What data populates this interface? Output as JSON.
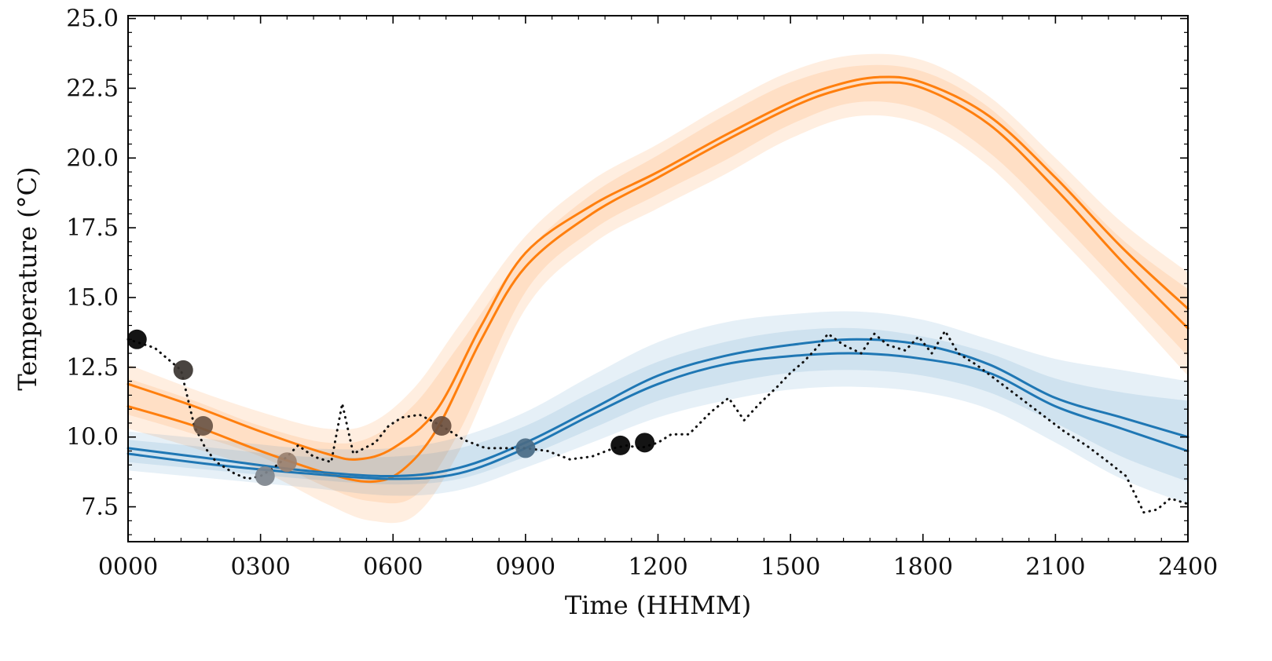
{
  "chart_data": {
    "type": "line",
    "title": "",
    "xlabel": "Time (HHMM)",
    "ylabel": "Temperature (°C)",
    "xlim": [
      0,
      2400
    ],
    "ylim": [
      6.25,
      25.1
    ],
    "x_ticks": [
      0,
      300,
      600,
      900,
      1200,
      1500,
      1800,
      2100,
      2400
    ],
    "x_tick_labels": [
      "0000",
      "0300",
      "0600",
      "0900",
      "1200",
      "1500",
      "1800",
      "2100",
      "2400"
    ],
    "y_ticks": [
      7.5,
      10.0,
      12.5,
      15.0,
      17.5,
      20.0,
      22.5,
      25.0
    ],
    "y_tick_labels": [
      "7.5",
      "10.0",
      "12.5",
      "15.0",
      "17.5",
      "20.0",
      "22.5",
      "25.0"
    ],
    "grid": false,
    "colors": {
      "orange": "#ff7f0e",
      "blue": "#1f77b4",
      "observed": "#111111",
      "axis": "#000000"
    },
    "bands": [
      {
        "name": "orange-band-outer",
        "color": "#ff7f0e",
        "opacity": 0.13,
        "x": [
          0,
          150,
          300,
          450,
          550,
          650,
          750,
          900,
          1050,
          1200,
          1350,
          1500,
          1650,
          1800,
          1950,
          2100,
          2250,
          2400
        ],
        "upper": [
          12.6,
          11.7,
          10.9,
          10.3,
          10.5,
          11.8,
          14.0,
          17.2,
          19.2,
          20.5,
          21.9,
          23.1,
          23.7,
          23.5,
          22.2,
          20.0,
          17.7,
          15.9
        ],
        "lower": [
          10.3,
          9.6,
          8.8,
          7.6,
          7.0,
          7.2,
          9.5,
          14.6,
          16.9,
          18.2,
          19.4,
          20.7,
          21.5,
          21.2,
          19.7,
          17.3,
          14.8,
          12.2
        ]
      },
      {
        "name": "orange-band-inner",
        "color": "#ff7f0e",
        "opacity": 0.13,
        "x": [
          0,
          150,
          300,
          450,
          550,
          650,
          750,
          900,
          1050,
          1200,
          1350,
          1500,
          1650,
          1800,
          1950,
          2100,
          2250,
          2400
        ],
        "upper": [
          12.1,
          11.3,
          10.4,
          9.8,
          10.0,
          11.2,
          13.3,
          16.6,
          18.7,
          20.1,
          21.5,
          22.7,
          23.3,
          23.1,
          21.8,
          19.5,
          17.1,
          15.3
        ],
        "lower": [
          10.8,
          10.1,
          9.3,
          8.2,
          7.7,
          7.9,
          10.2,
          15.2,
          17.4,
          18.7,
          19.9,
          21.2,
          22.0,
          21.7,
          20.2,
          17.9,
          15.4,
          12.9
        ]
      },
      {
        "name": "blue-band-outer",
        "color": "#1f77b4",
        "opacity": 0.11,
        "x": [
          0,
          200,
          400,
          600,
          750,
          900,
          1050,
          1200,
          1350,
          1500,
          1650,
          1800,
          1950,
          2100,
          2250,
          2400
        ],
        "upper": [
          10.2,
          9.9,
          9.6,
          9.6,
          10.0,
          10.9,
          12.2,
          13.4,
          14.1,
          14.4,
          14.5,
          14.2,
          13.5,
          12.8,
          12.4,
          12.0
        ],
        "lower": [
          8.8,
          8.5,
          8.2,
          7.9,
          8.1,
          8.9,
          9.8,
          10.7,
          11.3,
          11.7,
          11.8,
          11.6,
          11.0,
          9.8,
          8.5,
          7.6
        ]
      },
      {
        "name": "blue-band-inner",
        "color": "#1f77b4",
        "opacity": 0.11,
        "x": [
          0,
          200,
          400,
          600,
          750,
          900,
          1050,
          1200,
          1350,
          1500,
          1650,
          1800,
          1950,
          2100,
          2250,
          2400
        ],
        "upper": [
          9.9,
          9.6,
          9.3,
          9.3,
          9.6,
          10.4,
          11.6,
          12.7,
          13.4,
          13.8,
          13.9,
          13.6,
          13.0,
          12.1,
          11.6,
          11.3
        ],
        "lower": [
          9.1,
          8.8,
          8.5,
          8.3,
          8.5,
          9.3,
          10.3,
          11.3,
          11.9,
          12.3,
          12.4,
          12.2,
          11.6,
          10.5,
          9.3,
          8.4
        ]
      }
    ],
    "series": [
      {
        "name": "orange-mean-upper",
        "style": "solid",
        "color": "#ff7f0e",
        "x": [
          0,
          150,
          300,
          450,
          520,
          600,
          700,
          800,
          900,
          1050,
          1200,
          1350,
          1500,
          1600,
          1700,
          1800,
          1950,
          2100,
          2250,
          2400
        ],
        "y": [
          11.9,
          11.1,
          10.2,
          9.4,
          9.2,
          9.6,
          11.0,
          14.0,
          16.6,
          18.3,
          19.5,
          20.8,
          22.0,
          22.6,
          22.9,
          22.7,
          21.5,
          19.3,
          16.8,
          14.6
        ]
      },
      {
        "name": "orange-mean-lower",
        "style": "solid",
        "color": "#ff7f0e",
        "x": [
          0,
          150,
          300,
          450,
          550,
          620,
          700,
          800,
          900,
          1050,
          1200,
          1350,
          1500,
          1600,
          1700,
          1800,
          1950,
          2100,
          2250,
          2400
        ],
        "y": [
          11.1,
          10.4,
          9.5,
          8.7,
          8.4,
          8.8,
          10.3,
          13.5,
          16.1,
          18.0,
          19.3,
          20.6,
          21.8,
          22.4,
          22.7,
          22.5,
          21.2,
          18.9,
          16.3,
          13.9
        ]
      },
      {
        "name": "blue-mean-upper",
        "style": "solid",
        "color": "#1f77b4",
        "x": [
          0,
          200,
          400,
          600,
          750,
          900,
          1050,
          1200,
          1350,
          1500,
          1650,
          1800,
          1950,
          2100,
          2250,
          2400
        ],
        "y": [
          9.6,
          9.2,
          8.8,
          8.6,
          8.9,
          9.8,
          11.0,
          12.2,
          12.9,
          13.3,
          13.5,
          13.3,
          12.6,
          11.4,
          10.7,
          10.0
        ]
      },
      {
        "name": "blue-mean-lower",
        "style": "solid",
        "color": "#1f77b4",
        "x": [
          0,
          200,
          400,
          600,
          750,
          900,
          1050,
          1200,
          1350,
          1500,
          1650,
          1800,
          1950,
          2100,
          2250,
          2400
        ],
        "y": [
          9.4,
          9.0,
          8.7,
          8.5,
          8.7,
          9.6,
          10.8,
          11.9,
          12.6,
          12.9,
          13.0,
          12.8,
          12.3,
          11.1,
          10.3,
          9.5
        ]
      },
      {
        "name": "observed-temperature",
        "style": "dotted",
        "color": "#111111",
        "x": [
          0,
          60,
          120,
          150,
          175,
          200,
          240,
          270,
          300,
          330,
          360,
          385,
          420,
          460,
          485,
          510,
          560,
          590,
          620,
          660,
          710,
          760,
          810,
          860,
          900,
          950,
          1000,
          1050,
          1100,
          1130,
          1160,
          1200,
          1230,
          1270,
          1320,
          1360,
          1395,
          1430,
          1470,
          1500,
          1530,
          1560,
          1585,
          1620,
          1660,
          1690,
          1720,
          1760,
          1790,
          1820,
          1850,
          1880,
          1920,
          1970,
          2020,
          2070,
          2120,
          2170,
          2220,
          2260,
          2300,
          2330,
          2360,
          2400
        ],
        "y": [
          13.5,
          13.2,
          12.4,
          10.4,
          9.6,
          9.1,
          8.7,
          8.5,
          8.6,
          8.9,
          9.3,
          9.7,
          9.3,
          9.1,
          11.2,
          9.4,
          9.8,
          10.4,
          10.7,
          10.8,
          10.4,
          9.9,
          9.6,
          9.6,
          9.6,
          9.5,
          9.2,
          9.3,
          9.6,
          9.7,
          9.6,
          9.8,
          10.1,
          10.1,
          10.9,
          11.4,
          10.6,
          11.2,
          11.8,
          12.3,
          12.7,
          13.2,
          13.7,
          13.3,
          13.0,
          13.7,
          13.3,
          13.1,
          13.6,
          13.0,
          13.8,
          13.0,
          12.6,
          12.0,
          11.4,
          10.8,
          10.2,
          9.7,
          9.1,
          8.6,
          7.3,
          7.4,
          7.8,
          7.6
        ]
      }
    ],
    "markers": [
      {
        "x": 20,
        "y": 13.5,
        "color": "#000000"
      },
      {
        "x": 125,
        "y": 12.4,
        "color": "#3a3430"
      },
      {
        "x": 170,
        "y": 10.4,
        "color": "#6a5444"
      },
      {
        "x": 310,
        "y": 8.6,
        "color": "#7f868d"
      },
      {
        "x": 360,
        "y": 9.1,
        "color": "#9b8170"
      },
      {
        "x": 710,
        "y": 10.4,
        "color": "#6b5040"
      },
      {
        "x": 900,
        "y": 9.6,
        "color": "#4a6b86"
      },
      {
        "x": 1115,
        "y": 9.7,
        "color": "#000000"
      },
      {
        "x": 1170,
        "y": 9.8,
        "color": "#000000"
      }
    ]
  }
}
